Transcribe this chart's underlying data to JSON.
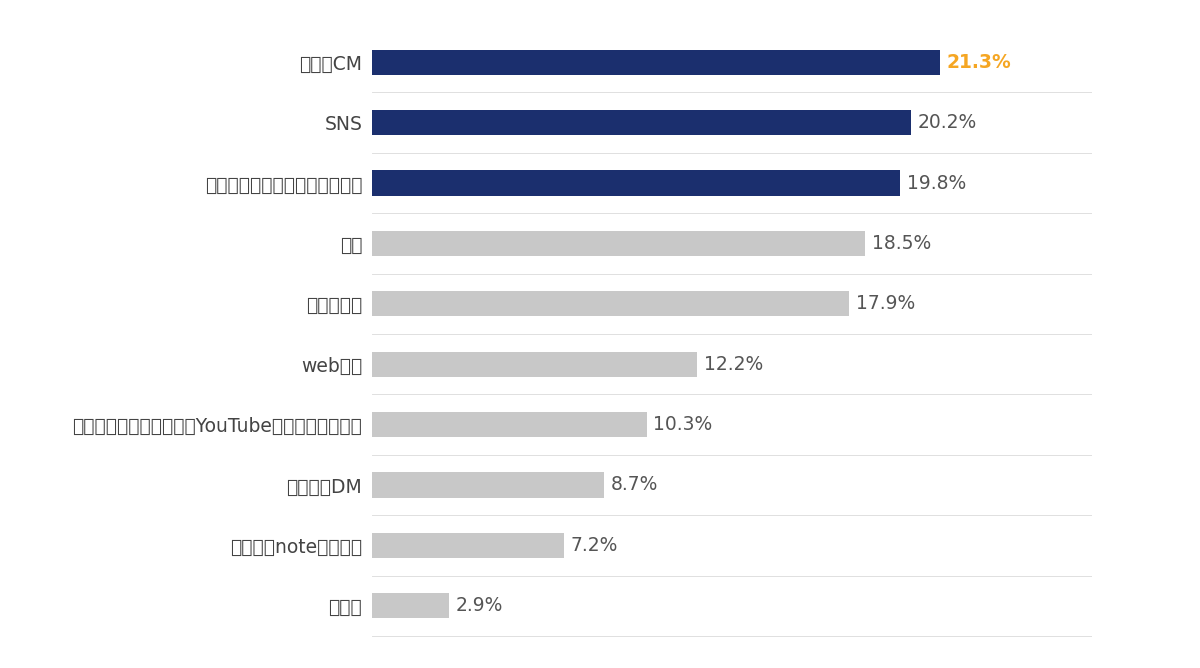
{
  "categories": [
    "ラジオ",
    "ブログ（note等含む）",
    "チラシ・DM",
    "動画共有サービス（例：YouTube、ニコニコ動画）",
    "web広告",
    "テレビ番組",
    "雑誌",
    "知人・家族・パートナーの紹介",
    "SNS",
    "テレビCM"
  ],
  "values": [
    2.9,
    7.2,
    8.7,
    10.3,
    12.2,
    17.9,
    18.5,
    19.8,
    20.2,
    21.3
  ],
  "bar_colors": [
    "#c8c8c8",
    "#c8c8c8",
    "#c8c8c8",
    "#c8c8c8",
    "#c8c8c8",
    "#c8c8c8",
    "#c8c8c8",
    "#1b2f6e",
    "#1b2f6e",
    "#1b2f6e"
  ],
  "label_colors": [
    "#555555",
    "#555555",
    "#555555",
    "#555555",
    "#555555",
    "#555555",
    "#555555",
    "#555555",
    "#555555",
    "#f5a623"
  ],
  "label_bold": [
    false,
    false,
    false,
    false,
    false,
    false,
    false,
    false,
    false,
    true
  ],
  "xlim": [
    0,
    27
  ],
  "background_color": "#ffffff",
  "bar_height": 0.42,
  "value_label_fontsize": 13.5,
  "category_fontsize": 13.5
}
